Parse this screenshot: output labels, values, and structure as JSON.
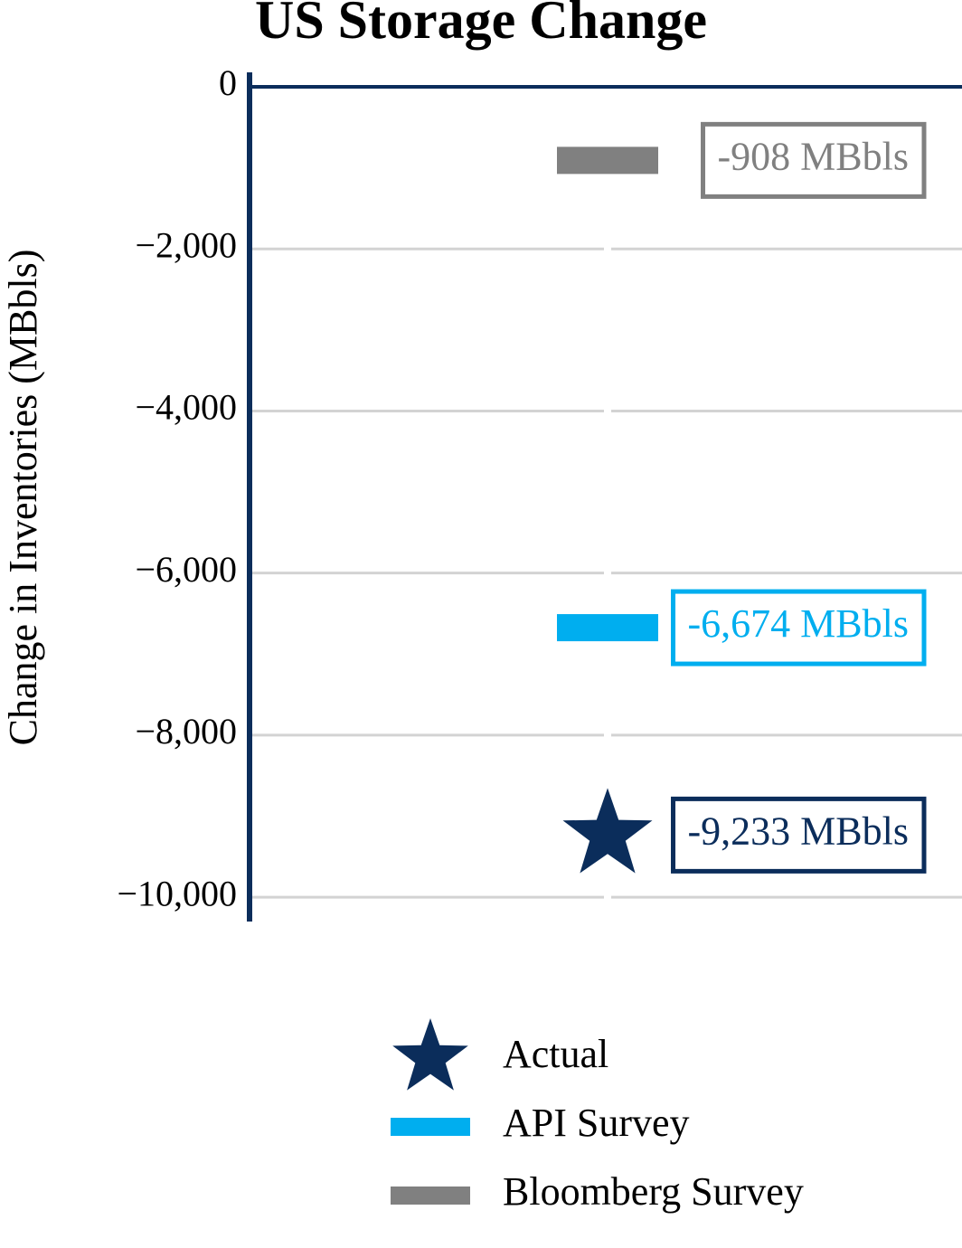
{
  "chart_data": {
    "type": "marker",
    "title": "US Storage Change",
    "y_label": "Change in Inventories (MBbls)",
    "ylim": [
      -10300,
      0
    ],
    "yticks": [
      0,
      {
        "value": -2000,
        "label": "−2,000"
      },
      {
        "value": -4000,
        "label": "−4,000"
      },
      {
        "value": -6000,
        "label": "−6,000"
      },
      {
        "value": -8000,
        "label": "−8,000"
      },
      {
        "value": -10000,
        "label": "−10,000"
      }
    ],
    "grid": true,
    "legend": "bottom",
    "series": [
      {
        "name": "Actual",
        "color": "#0b2d5b",
        "marker": "star",
        "values": [
          -9233
        ],
        "value_labels": [
          "-9,233 MBbls"
        ]
      },
      {
        "name": "API Survey",
        "color": "#00aeef",
        "marker": "dash",
        "values": [
          -6674
        ],
        "value_labels": [
          "-6,674 MBbls"
        ]
      },
      {
        "name": "Bloomberg Survey",
        "color": "#808080",
        "marker": "dash",
        "values": [
          -908
        ],
        "value_labels": [
          "-908 MBbls"
        ]
      }
    ]
  }
}
